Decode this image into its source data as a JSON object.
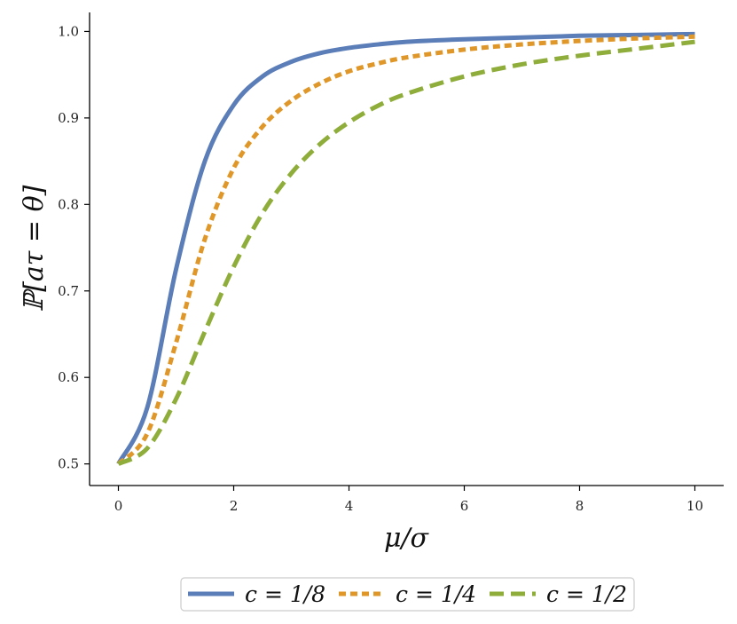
{
  "chart_data": {
    "type": "line",
    "xlabel": "μ/σ",
    "ylabel": "ℙ[aτ = θ]",
    "xlim": [
      -0.5,
      10.5
    ],
    "ylim": [
      0.475,
      1.022
    ],
    "x_ticks": [
      "0",
      "2",
      "4",
      "6",
      "8",
      "10"
    ],
    "y_ticks": [
      "0.5",
      "0.6",
      "0.7",
      "0.8",
      "0.9",
      "1.0"
    ],
    "grid": false,
    "legend_placement": "bottom-center outside",
    "x": [
      0,
      0.5,
      1,
      1.5,
      2,
      2.5,
      3,
      3.5,
      4,
      4.5,
      5,
      6,
      7,
      8,
      9,
      10
    ],
    "series": [
      {
        "name": "c = 1/8",
        "color": "#5b7db8",
        "style": "solid",
        "values": [
          0.5,
          0.565,
          0.725,
          0.85,
          0.915,
          0.948,
          0.965,
          0.975,
          0.981,
          0.985,
          0.988,
          0.991,
          0.993,
          0.995,
          0.996,
          0.997
        ]
      },
      {
        "name": "c = 1/4",
        "color": "#e0972a",
        "style": "dotted",
        "values": [
          0.5,
          0.535,
          0.64,
          0.76,
          0.842,
          0.89,
          0.92,
          0.94,
          0.954,
          0.963,
          0.97,
          0.979,
          0.985,
          0.989,
          0.992,
          0.994
        ]
      },
      {
        "name": "c = 1/2",
        "color": "#8fad3a",
        "style": "dashed",
        "values": [
          0.5,
          0.518,
          0.575,
          0.653,
          0.728,
          0.79,
          0.836,
          0.87,
          0.895,
          0.914,
          0.928,
          0.948,
          0.962,
          0.972,
          0.98,
          0.988
        ]
      }
    ]
  }
}
